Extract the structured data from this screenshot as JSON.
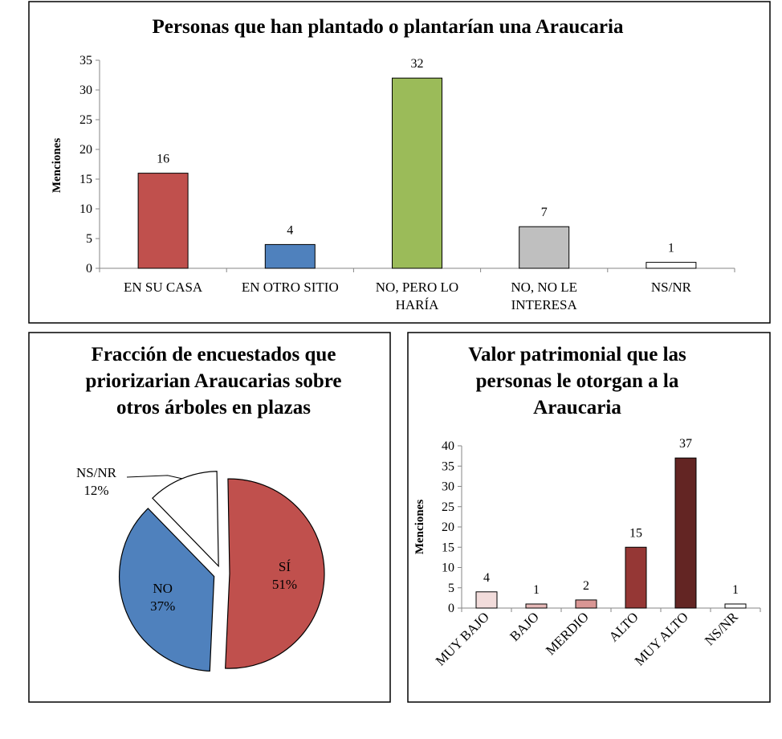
{
  "chart_data": [
    {
      "type": "bar",
      "title": "Personas que han plantado o plantarían una Araucaria",
      "ylabel": "Menciones",
      "xlabel": "",
      "ylim": [
        0,
        35
      ],
      "yticks": [
        "0",
        "5",
        "10",
        "15",
        "20",
        "25",
        "30",
        "35"
      ],
      "categories": [
        [
          "EN SU CASA"
        ],
        [
          "EN OTRO SITIO"
        ],
        [
          "NO, PERO LO",
          "HARÍA"
        ],
        [
          "NO, NO LE",
          "INTERESA"
        ],
        [
          "NS/NR"
        ]
      ],
      "values": [
        16,
        4,
        32,
        7,
        1
      ],
      "data_labels": [
        "16",
        "4",
        "32",
        "7",
        "1"
      ],
      "colors": [
        "#c0504d",
        "#4f81bd",
        "#9bbb59",
        "#bfbfbf",
        "#ffffff"
      ],
      "grid": false,
      "legend": "none"
    },
    {
      "type": "pie",
      "title": [
        "Fracción de encuestados que",
        "priorizarian Araucarias sobre",
        "otros árboles en plazas"
      ],
      "slices": [
        {
          "label": "SÍ",
          "pct_label": "51%",
          "value": 51,
          "color": "#c0504d"
        },
        {
          "label": "NO",
          "pct_label": "37%",
          "value": 37,
          "color": "#4f81bd"
        },
        {
          "label": "NS/NR",
          "pct_label": "12%",
          "value": 12,
          "color": "#ffffff"
        }
      ],
      "exploded": true,
      "legend": "none"
    },
    {
      "type": "bar",
      "title": [
        "Valor patrimonial que las",
        "personas le otorgan a la",
        "Araucaria"
      ],
      "ylabel": "Menciones",
      "xlabel": "",
      "ylim": [
        0,
        40
      ],
      "yticks": [
        "0",
        "5",
        "10",
        "15",
        "20",
        "25",
        "30",
        "35",
        "40"
      ],
      "categories": [
        "MUY BAJO",
        "BAJO",
        "MERDIO",
        "ALTO",
        "MUY ALTO",
        "NS/NR"
      ],
      "values": [
        4,
        1,
        2,
        15,
        37,
        1
      ],
      "data_labels": [
        "4",
        "1",
        "2",
        "15",
        "37",
        "1"
      ],
      "colors": [
        "#f2dcdb",
        "#e6b9b8",
        "#d99694",
        "#953735",
        "#632523",
        "#ffffff"
      ],
      "grid": false,
      "legend": "none"
    }
  ]
}
